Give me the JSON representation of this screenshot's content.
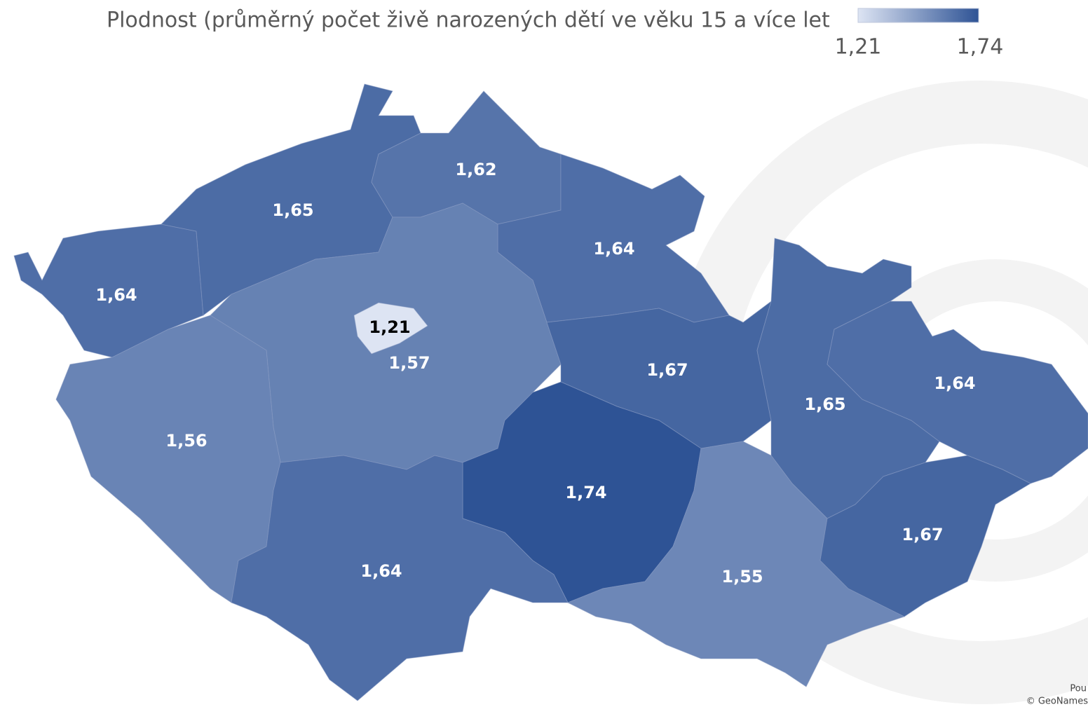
{
  "title": "Plodnost (průměrný počet živě narozených dětí ve věku 15 a více let",
  "legend": {
    "min": {
      "value": 1.21,
      "label": "1,21"
    },
    "max": {
      "value": 1.74,
      "label": "1,74"
    },
    "colors": [
      "#dde4f3",
      "#2e5395"
    ]
  },
  "regions": [
    {
      "value": 1.64,
      "label": "1,64"
    },
    {
      "value": 1.65,
      "label": "1,65"
    },
    {
      "value": 1.62,
      "label": "1,62"
    },
    {
      "value": 1.64,
      "label": "1,64"
    },
    {
      "value": 1.57,
      "label": "1,57"
    },
    {
      "value": 1.21,
      "label": "1,21"
    },
    {
      "value": 1.56,
      "label": "1,56"
    },
    {
      "value": 1.67,
      "label": "1,67"
    },
    {
      "value": 1.65,
      "label": "1,65"
    },
    {
      "value": 1.64,
      "label": "1,64"
    },
    {
      "value": 1.74,
      "label": "1,74"
    },
    {
      "value": 1.64,
      "label": "1,64"
    },
    {
      "value": 1.55,
      "label": "1,55"
    },
    {
      "value": 1.67,
      "label": "1,67"
    }
  ],
  "attribution": [
    "Pou",
    "© GeoNames"
  ]
}
